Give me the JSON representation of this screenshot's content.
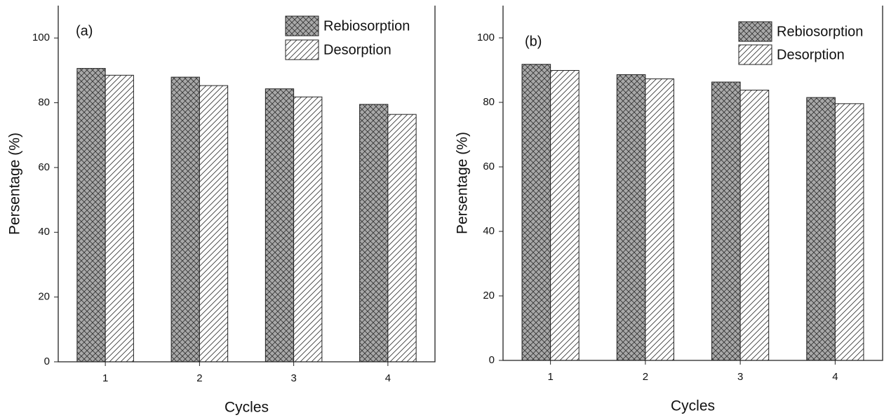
{
  "chart_data": [
    {
      "type": "bar",
      "annotation": "(a)",
      "x_label": "Cycles",
      "y_label": "Persentage (%)",
      "x": [
        1,
        2,
        3,
        4
      ],
      "xlim": [
        0.5,
        4.5
      ],
      "xticks": [
        1,
        2,
        3,
        4
      ],
      "ylim": [
        0,
        110
      ],
      "yticks": [
        0,
        20,
        40,
        60,
        80,
        100
      ],
      "series": [
        {
          "name": "Rebiosorption",
          "color": "#a8a8a8",
          "hatch": "cross",
          "values": [
            90.6,
            87.9,
            84.3,
            79.5
          ]
        },
        {
          "name": "Desorption",
          "color": "#ffffff",
          "hatch": "diagonal",
          "values": [
            88.5,
            85.3,
            81.8,
            76.4
          ]
        }
      ]
    },
    {
      "type": "bar",
      "annotation": "(b)",
      "x_label": "Cycles",
      "y_label": "Persentage (%)",
      "x": [
        1,
        2,
        3,
        4
      ],
      "xlim": [
        0.5,
        4.5
      ],
      "xticks": [
        1,
        2,
        3,
        4
      ],
      "ylim": [
        0,
        110
      ],
      "yticks": [
        0,
        20,
        40,
        60,
        80,
        100
      ],
      "series": [
        {
          "name": "Rebiosorption",
          "color": "#a8a8a8",
          "hatch": "cross",
          "values": [
            91.8,
            88.6,
            86.3,
            81.5
          ]
        },
        {
          "name": "Desorption",
          "color": "#ffffff",
          "hatch": "diagonal",
          "values": [
            89.9,
            87.3,
            83.8,
            79.6
          ]
        }
      ]
    }
  ]
}
